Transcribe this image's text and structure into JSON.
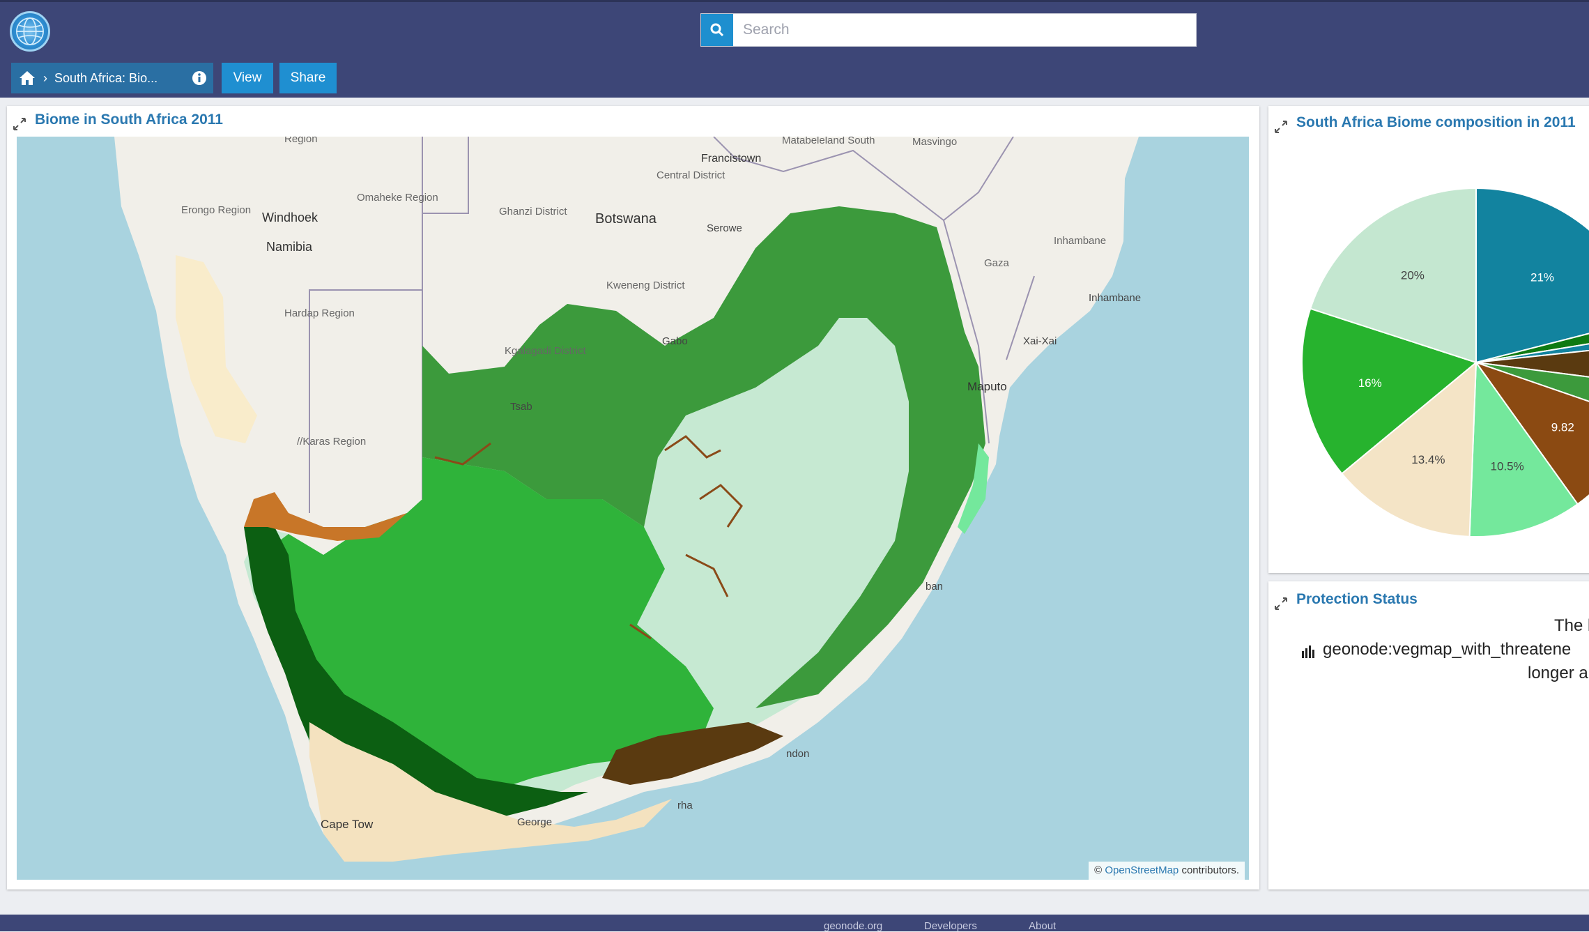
{
  "header": {
    "search": {
      "placeholder": "Search"
    },
    "breadcrumb": {
      "title": "South Africa: Bio..."
    },
    "buttons": {
      "view": "View",
      "share": "Share"
    }
  },
  "map_panel": {
    "title": "Biome in South Africa 2011",
    "attribution": {
      "prefix": "©",
      "link": "OpenStreetMap",
      "suffix": "contributors."
    },
    "place_labels": [
      "Region",
      "Matabeleland South",
      "Masvingo",
      "Francistown",
      "Central District",
      "Erongo Region",
      "Windhoek",
      "Omaheke Region",
      "Ghanzi District",
      "Botswana",
      "Serowe",
      "Namibia",
      "Inhambane",
      "Gaza",
      "Hardap Region",
      "Kweneng District",
      "Inhambane",
      "Gabo",
      "Kgalagadi District",
      "Xai-Xai",
      "Maputo",
      "Tsab",
      "//Karas Region",
      "ban",
      "ndon",
      "rha",
      "Cape Tow",
      "George"
    ]
  },
  "pie_panel": {
    "title": "South Africa Biome composition in 2011",
    "chart_data": {
      "type": "pie",
      "values": [
        21,
        20,
        16,
        13.4,
        10.5,
        9.82
      ],
      "value_labels": [
        "21%",
        "20%",
        "16%",
        "13.4%",
        "10.5%",
        "9.82"
      ],
      "colors": [
        "#12839f",
        "#c4e7d0",
        "#27b32e",
        "#f4e4c6",
        "#74e89c",
        "#8b4a12"
      ]
    }
  },
  "protection_panel": {
    "title": "Protection Status",
    "line1": "The l",
    "line2": "geonode:vegmap_with_threatene",
    "line3": "longer a"
  },
  "footer": {
    "links": [
      "geonode.org",
      "Developers",
      "About"
    ]
  },
  "colors": {
    "topbar": "#3d4677",
    "accent": "#1f8fd1",
    "title_blue": "#2a78b0",
    "biome_savanna": "#c6e9d2",
    "biome_grassland": "#3c9a3c",
    "biome_nama_karoo": "#2fb33a",
    "biome_fynbos": "#f4e2bf",
    "biome_succulent": "#0c5f12",
    "biome_thicket": "#5a3a10",
    "biome_forest": "#8a4a18"
  },
  "icons": {
    "home": "home-icon",
    "info": "info-icon",
    "search": "search-icon",
    "expand": "expand-icon",
    "chart": "bar-chart-icon"
  }
}
